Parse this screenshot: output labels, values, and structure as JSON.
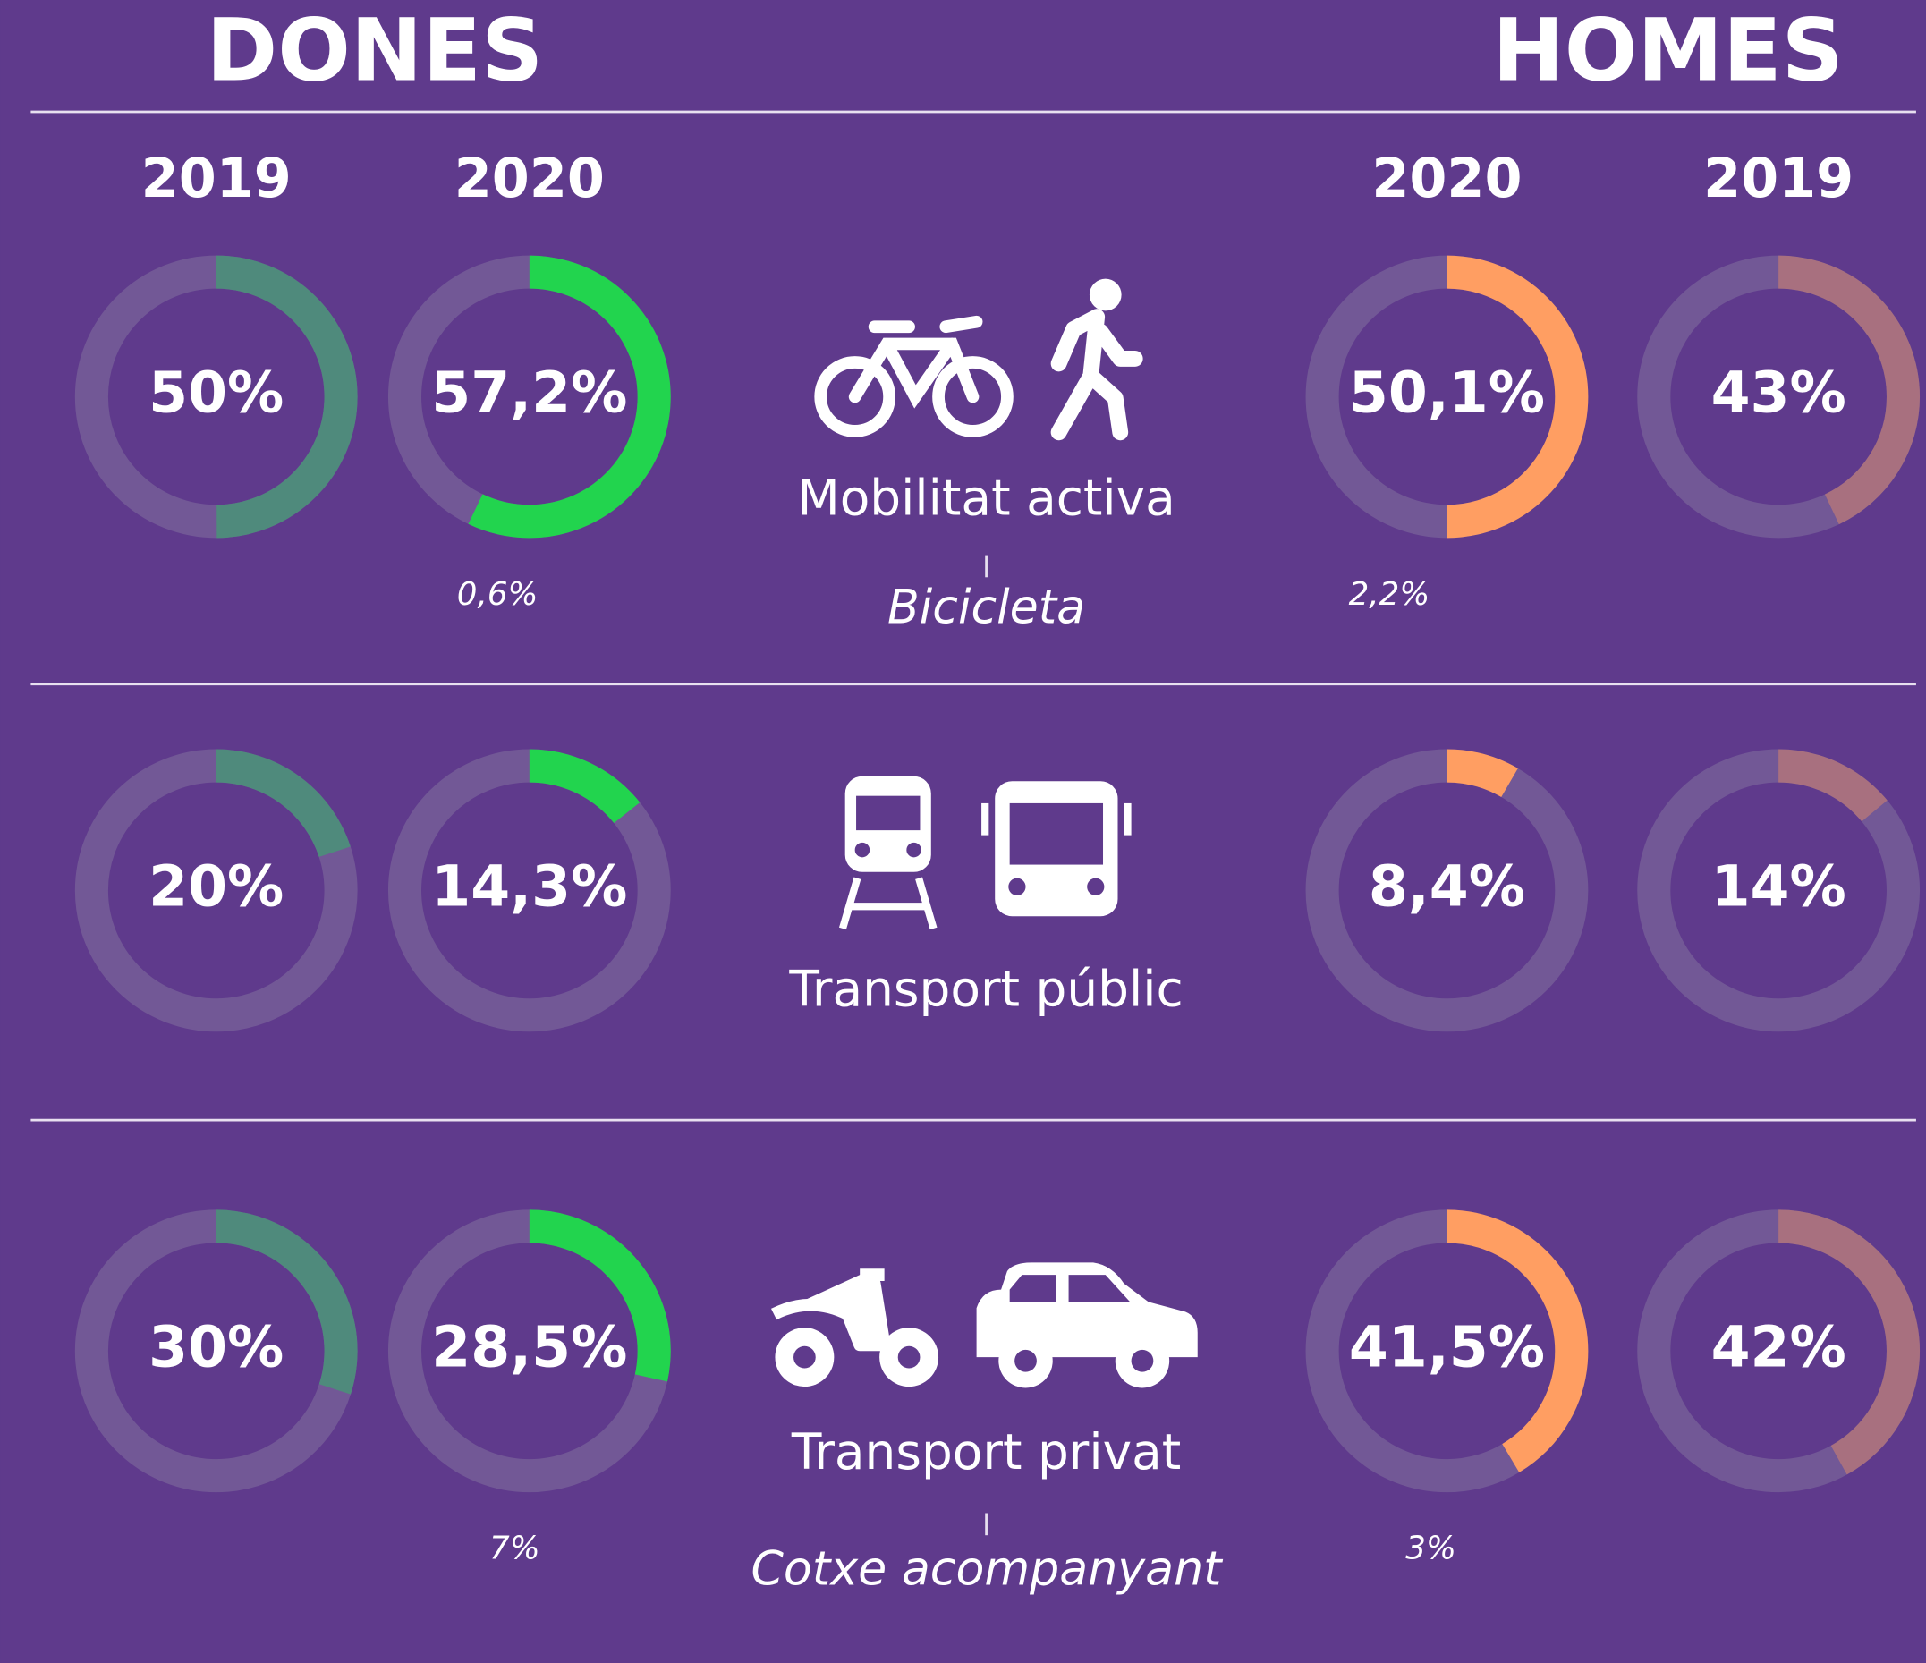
{
  "chart_data": {
    "type": "donut",
    "categories": [
      "Mobilitat activa",
      "Transport públic",
      "Transport privat"
    ],
    "sublabels": [
      "Bicicleta",
      null,
      "Cotxe acompanyant"
    ],
    "groups": [
      {
        "title": "DONES",
        "series": [
          {
            "name": "2019",
            "color": "#4f8a7c",
            "values": [
              50,
              20,
              30
            ],
            "value_labels": [
              "50%",
              "20%",
              "30%"
            ]
          },
          {
            "name": "2020",
            "color": "#22d44e",
            "values": [
              57.2,
              14.3,
              28.5
            ],
            "value_labels": [
              "57,2%",
              "14,3%",
              "28,5%"
            ],
            "notes": [
              0.6,
              null,
              7
            ],
            "note_labels": [
              "0,6%",
              null,
              "7%"
            ]
          }
        ]
      },
      {
        "title": "HOMES",
        "series": [
          {
            "name": "2020",
            "color": "#ff9e62",
            "values": [
              50.1,
              8.4,
              41.5
            ],
            "value_labels": [
              "50,1%",
              "8,4%",
              "41,5%"
            ],
            "notes": [
              2.2,
              null,
              3
            ],
            "note_labels": [
              "2,2%",
              null,
              "3%"
            ]
          },
          {
            "name": "2019",
            "color": "#a8707f",
            "values": [
              43,
              14,
              42
            ],
            "value_labels": [
              "43%",
              "14%",
              "42%"
            ]
          }
        ]
      }
    ]
  }
}
